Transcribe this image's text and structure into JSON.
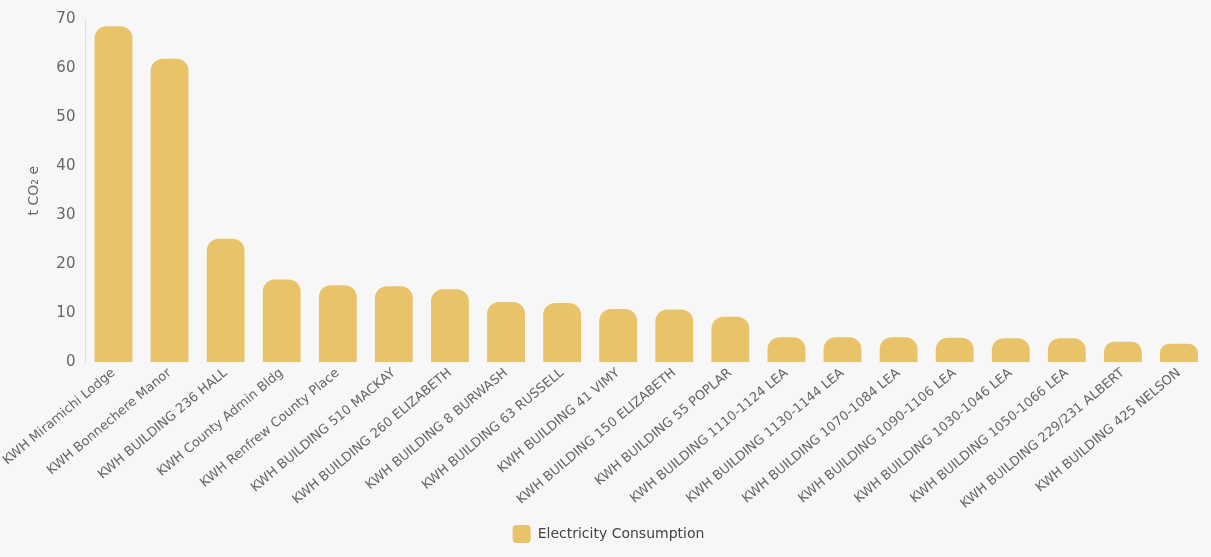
{
  "chart_data": {
    "type": "bar",
    "ylabel": "t CO₂ e",
    "categories": [
      "KWH Miramichi Lodge",
      "KWH Bonnechere Manor",
      "KWH BUILDING 236 HALL",
      "KWH County Admin Bldg",
      "KWH Renfrew County Place",
      "KWH BUILDING 510 MACKAY",
      "KWH BUILDING 260 ELIZABETH",
      "KWH BUILDING 8 BURWASH",
      "KWH BUILDING 63 RUSSELL",
      "KWH BUILDING 41 VIMY",
      "KWH BUILDING 150 ELIZABETH",
      "KWH BUILDING 55 POPLAR",
      "KWH BUILDING 1110-1124 LEA",
      "KWH BUILDING 1130-1144 LEA",
      "KWH BUILDING 1070-1084 LEA",
      "KWH BUILDING 1090-1106 LEA",
      "KWH BUILDING 1030-1046 LEA",
      "KWH BUILDING 1050-1066 LEA",
      "KWH BUILDING 229/231 ALBERT",
      "KWH BUILDING 425 NELSON"
    ],
    "series": [
      {
        "name": "Electricity Consumption",
        "color": "#e8c36a",
        "values": [
          68.5,
          61.9,
          25.2,
          16.9,
          15.7,
          15.5,
          14.9,
          12.3,
          12.1,
          10.9,
          10.8,
          9.3,
          5.1,
          5.1,
          5.1,
          5.0,
          4.9,
          4.9,
          4.2,
          3.8
        ]
      }
    ],
    "ylim": [
      0,
      70
    ],
    "yticks": [
      0,
      10,
      20,
      30,
      40,
      50,
      60,
      70
    ],
    "grid": false,
    "legend": "bottom"
  }
}
